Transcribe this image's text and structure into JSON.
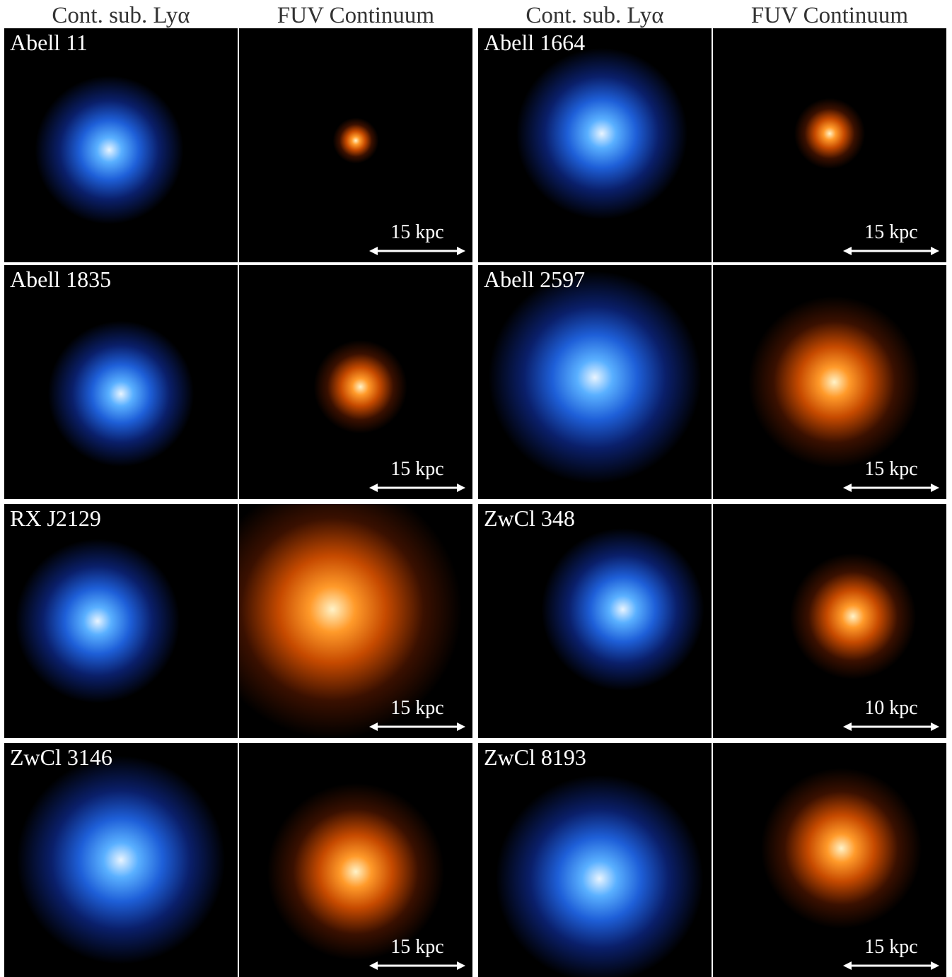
{
  "headers": [
    "Cont. sub. Lyα",
    "FUV Continuum",
    "Cont. sub. Lyα",
    "FUV Continuum"
  ],
  "panels": [
    {
      "name": "Abell 11",
      "scale": "15 kpc"
    },
    {
      "name": "Abell 1664",
      "scale": "15 kpc"
    },
    {
      "name": "Abell 1835",
      "scale": "15 kpc"
    },
    {
      "name": "Abell 2597",
      "scale": "15 kpc"
    },
    {
      "name": "RX J2129",
      "scale": "15 kpc"
    },
    {
      "name": "ZwCl 348",
      "scale": "10 kpc"
    },
    {
      "name": "ZwCl 3146",
      "scale": "15 kpc"
    },
    {
      "name": "ZwCl 8193",
      "scale": "15 kpc"
    }
  ]
}
